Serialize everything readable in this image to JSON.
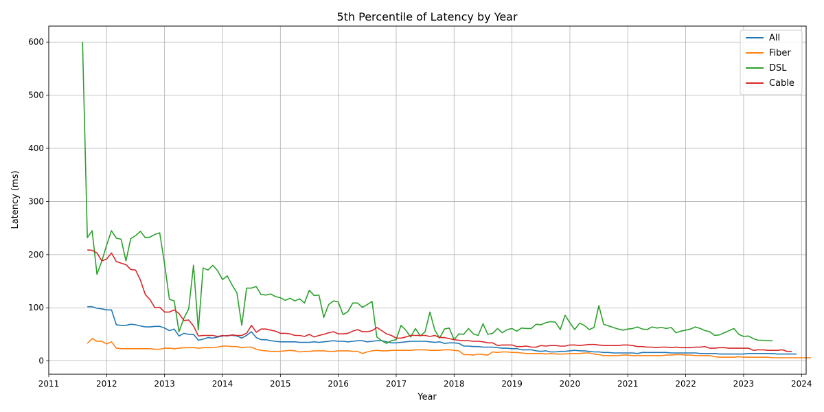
{
  "chart_data": {
    "type": "line",
    "title": "5th Percentile of Latency by Year",
    "xlabel": "Year",
    "ylabel": "Latency (ms)",
    "xlim": [
      2011.0,
      2024.08
    ],
    "ylim": [
      -25,
      630
    ],
    "x_ticks": [
      "2011",
      "2012",
      "2013",
      "2014",
      "2015",
      "2016",
      "2017",
      "2018",
      "2019",
      "2020",
      "2021",
      "2022",
      "2023",
      "2024"
    ],
    "y_ticks": [
      "0",
      "100",
      "200",
      "300",
      "400",
      "500",
      "600"
    ],
    "grid": true,
    "legend_position": "top-right",
    "series": [
      {
        "name": "All",
        "color": "#1f77b4",
        "start": 2011.667,
        "values": [
          102,
          102,
          99,
          98,
          96,
          96,
          68,
          67,
          67,
          69,
          68,
          66,
          64,
          64,
          65,
          65,
          62,
          57,
          60,
          47,
          52,
          50,
          50,
          39,
          41,
          44,
          43,
          45,
          47,
          48,
          48,
          47,
          43,
          48,
          55,
          44,
          40,
          40,
          38,
          37,
          36,
          36,
          36,
          36,
          35,
          35,
          35,
          36,
          35,
          36,
          37,
          38,
          37,
          37,
          36,
          37,
          38,
          38,
          36,
          37,
          38,
          38,
          36,
          34,
          34,
          35,
          36,
          37,
          37,
          37,
          37,
          36,
          35,
          36,
          33,
          34,
          34,
          33,
          28,
          28,
          27,
          27,
          26,
          26,
          26,
          25,
          24,
          24,
          23,
          23,
          21,
          21,
          21,
          19,
          18,
          19,
          17,
          17,
          18,
          18,
          19,
          20,
          19,
          19,
          18,
          17,
          17,
          16,
          16,
          15,
          15,
          15,
          15,
          15,
          14,
          16,
          16,
          16,
          16,
          16,
          16,
          15,
          15,
          15,
          15,
          15,
          15,
          14,
          14,
          14,
          14,
          13,
          13,
          13,
          13,
          13,
          13,
          14,
          14,
          14,
          14,
          14,
          14,
          13,
          13,
          13,
          13,
          13
        ]
      },
      {
        "name": "Fiber",
        "color": "#ff7f0e",
        "start": 2011.667,
        "values": [
          33,
          42,
          37,
          37,
          32,
          36,
          24,
          23,
          23,
          23,
          23,
          23,
          23,
          23,
          22,
          22,
          24,
          24,
          23,
          24,
          25,
          25,
          25,
          24,
          25,
          25,
          25,
          26,
          28,
          28,
          27,
          27,
          25,
          26,
          26,
          22,
          20,
          19,
          18,
          18,
          18,
          19,
          20,
          19,
          17,
          18,
          18,
          19,
          19,
          19,
          18,
          18,
          19,
          19,
          19,
          18,
          18,
          14,
          17,
          19,
          20,
          19,
          19,
          20,
          20,
          20,
          20,
          20,
          21,
          21,
          21,
          20,
          20,
          20,
          21,
          21,
          20,
          19,
          12,
          12,
          11,
          13,
          12,
          11,
          17,
          16,
          17,
          17,
          16,
          16,
          15,
          14,
          14,
          14,
          14,
          13,
          14,
          13,
          13,
          13,
          14,
          14,
          14,
          15,
          15,
          13,
          12,
          10,
          10,
          10,
          10,
          11,
          11,
          10,
          10,
          10,
          10,
          10,
          10,
          10,
          11,
          11,
          12,
          12,
          11,
          11,
          10,
          10,
          10,
          10,
          8,
          7,
          7,
          7,
          7,
          8,
          7,
          7,
          7,
          7,
          7,
          7,
          6,
          6,
          6,
          6,
          6,
          6,
          6,
          6,
          6
        ]
      },
      {
        "name": "DSL",
        "color": "#2ca02c",
        "start": 2011.583,
        "values": [
          600,
          232,
          245,
          163,
          188,
          218,
          245,
          231,
          229,
          188,
          230,
          236,
          244,
          232,
          233,
          238,
          241,
          183,
          116,
          113,
          55,
          80,
          98,
          180,
          58,
          175,
          171,
          180,
          170,
          153,
          160,
          143,
          128,
          67,
          137,
          137,
          140,
          125,
          124,
          126,
          121,
          119,
          114,
          118,
          113,
          117,
          109,
          133,
          123,
          124,
          82,
          106,
          113,
          111,
          87,
          93,
          109,
          109,
          101,
          106,
          112,
          45,
          38,
          33,
          38,
          40,
          67,
          58,
          45,
          61,
          47,
          55,
          92,
          58,
          43,
          60,
          62,
          40,
          51,
          50,
          61,
          51,
          48,
          70,
          50,
          52,
          61,
          53,
          59,
          61,
          56,
          62,
          61,
          61,
          69,
          68,
          72,
          74,
          73,
          59,
          86,
          72,
          59,
          71,
          67,
          59,
          63,
          104,
          69,
          66,
          63,
          60,
          58,
          60,
          61,
          64,
          60,
          59,
          64,
          62,
          63,
          61,
          63,
          53,
          56,
          58,
          60,
          64,
          61,
          57,
          55,
          48,
          49,
          53,
          57,
          61,
          50,
          46,
          47,
          42,
          39,
          39,
          38,
          38
        ]
      },
      {
        "name": "Cable",
        "color": "#d62728",
        "start": 2011.667,
        "values": [
          209,
          208,
          203,
          188,
          192,
          203,
          187,
          184,
          181,
          172,
          171,
          152,
          125,
          115,
          100,
          101,
          92,
          92,
          96,
          89,
          76,
          77,
          66,
          47,
          48,
          48,
          48,
          46,
          48,
          47,
          49,
          48,
          48,
          52,
          67,
          54,
          60,
          60,
          58,
          56,
          52,
          52,
          51,
          48,
          48,
          46,
          50,
          45,
          48,
          50,
          53,
          55,
          51,
          51,
          52,
          56,
          59,
          55,
          55,
          57,
          63,
          57,
          51,
          48,
          43,
          43,
          45,
          48,
          48,
          48,
          48,
          46,
          48,
          44,
          44,
          42,
          40,
          39,
          38,
          38,
          37,
          37,
          36,
          34,
          34,
          29,
          30,
          30,
          30,
          27,
          27,
          28,
          26,
          26,
          29,
          28,
          29,
          29,
          28,
          28,
          30,
          30,
          29,
          30,
          31,
          31,
          30,
          29,
          29,
          29,
          29,
          30,
          30,
          29,
          27,
          27,
          26,
          26,
          25,
          26,
          26,
          25,
          26,
          25,
          25,
          25,
          26,
          26,
          27,
          24,
          24,
          25,
          25,
          24,
          24,
          24,
          24,
          24,
          20,
          21,
          21,
          20,
          20,
          20,
          21,
          18,
          18
        ]
      }
    ]
  }
}
